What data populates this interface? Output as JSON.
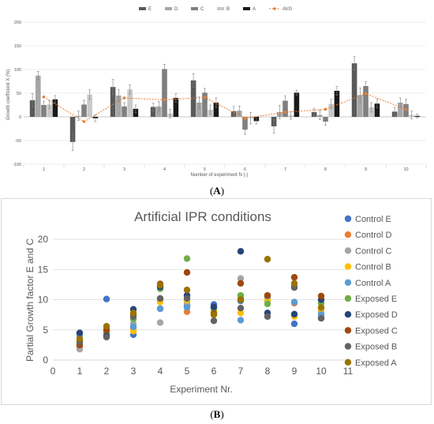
{
  "chart_data": [
    {
      "type": "bar",
      "panel_label": "A",
      "title": "",
      "xlabel": "Number of experiment N (-)",
      "ylabel": "Growth coefficient X (%)",
      "ylim": [
        -100,
        200
      ],
      "yticks": [
        -100,
        -50,
        0,
        50,
        100,
        150,
        200
      ],
      "categories": [
        "1",
        "2",
        "3",
        "4",
        "5",
        "6",
        "7",
        "8",
        "9",
        "10"
      ],
      "legend_position": "top",
      "grid": true,
      "series": [
        {
          "name": "E",
          "color": "#595959",
          "values": [
            35,
            -53,
            63,
            21,
            77,
            12,
            -20,
            10,
            113,
            11
          ],
          "errors": [
            14,
            18,
            16,
            8,
            14,
            10,
            14,
            8,
            14,
            9
          ]
        },
        {
          "name": "D",
          "color": "#a6a6a6",
          "values": [
            87,
            2,
            45,
            22,
            30,
            13,
            10,
            4,
            46,
            30
          ],
          "errors": [
            9,
            10,
            12,
            10,
            12,
            10,
            14,
            10,
            15,
            10
          ]
        },
        {
          "name": "C",
          "color": "#7f7f7f",
          "values": [
            25,
            26,
            22,
            101,
            51,
            -27,
            34,
            -10,
            65,
            27
          ],
          "errors": [
            8,
            9,
            8,
            10,
            9,
            10,
            10,
            8,
            9,
            10
          ]
        },
        {
          "name": "B",
          "color": "#c9c9c9",
          "values": [
            26,
            47,
            58,
            7,
            15,
            -3,
            3,
            27,
            20,
            4
          ],
          "errors": [
            8,
            10,
            10,
            9,
            10,
            12,
            8,
            10,
            10,
            8
          ]
        },
        {
          "name": "A",
          "color": "#1a1a1a",
          "values": [
            37,
            -3,
            17,
            40,
            30,
            -9,
            51,
            55,
            28,
            2
          ],
          "errors": [
            8,
            7,
            8,
            9,
            10,
            6,
            5,
            9,
            9,
            4
          ]
        }
      ],
      "line_series": {
        "name": "AVG",
        "color": "#ed7d31",
        "values": [
          42,
          -10,
          40,
          36,
          41,
          -3,
          10,
          16,
          49,
          16
        ]
      }
    },
    {
      "type": "scatter",
      "panel_label": "B",
      "title": "Artificial IPR conditions",
      "xlabel": "Experiment Nr.",
      "ylabel": "Partial Growth factor E and C",
      "xlim": [
        0,
        11
      ],
      "ylim": [
        0,
        20
      ],
      "xticks": [
        0,
        1,
        2,
        3,
        4,
        5,
        6,
        7,
        8,
        9,
        10,
        11
      ],
      "yticks": [
        0,
        5,
        10,
        15,
        20
      ],
      "legend_position": "right",
      "grid": true,
      "x": [
        1,
        2,
        3,
        4,
        5,
        6,
        7,
        8,
        9,
        10
      ],
      "series": [
        {
          "name": "Control E",
          "color": "#4472c4",
          "values": [
            4.3,
            10.1,
            4.2,
            8.5,
            9.0,
            9.2,
            9.8,
            10.3,
            6.0,
            7.0
          ]
        },
        {
          "name": "Control D",
          "color": "#ed7d31",
          "values": [
            2.2,
            4.6,
            5.3,
            9.8,
            8.0,
            8.0,
            10.2,
            10.0,
            9.4,
            8.0
          ]
        },
        {
          "name": "Control C",
          "color": "#a5a5a5",
          "values": [
            1.8,
            4.2,
            6.0,
            6.2,
            9.5,
            8.3,
            13.5,
            9.8,
            9.6,
            7.8
          ]
        },
        {
          "name": "Control B",
          "color": "#ffc000",
          "values": [
            2.8,
            5.5,
            4.8,
            9.6,
            9.9,
            8.1,
            7.8,
            10.0,
            7.2,
            8.5
          ]
        },
        {
          "name": "Control A",
          "color": "#5b9bd5",
          "values": [
            4.0,
            4.5,
            5.5,
            8.5,
            8.7,
            8.7,
            6.6,
            10.6,
            9.6,
            7.5
          ]
        },
        {
          "name": "Exposed E",
          "color": "#70ad47",
          "values": [
            3.2,
            4.7,
            6.8,
            11.8,
            16.8,
            8.5,
            10.7,
            9.3,
            12.3,
            9.4
          ]
        },
        {
          "name": "Exposed D",
          "color": "#264478",
          "values": [
            4.5,
            4.0,
            8.4,
            12.1,
            10.7,
            8.8,
            18.0,
            7.8,
            7.6,
            10.0
          ]
        },
        {
          "name": "Exposed C",
          "color": "#9e480e",
          "values": [
            2.5,
            5.0,
            7.6,
            12.6,
            14.5,
            7.7,
            12.7,
            10.7,
            13.7,
            10.6
          ]
        },
        {
          "name": "Exposed B",
          "color": "#636363",
          "values": [
            3.0,
            3.8,
            7.2,
            10.2,
            10.2,
            6.5,
            8.6,
            7.2,
            12.0,
            6.9
          ]
        },
        {
          "name": "Exposed A",
          "color": "#997300",
          "values": [
            3.5,
            5.6,
            7.8,
            12.4,
            11.6,
            7.5,
            10.0,
            16.7,
            12.7,
            8.7
          ]
        }
      ]
    }
  ],
  "captions": {
    "a": "A",
    "b": "B"
  }
}
